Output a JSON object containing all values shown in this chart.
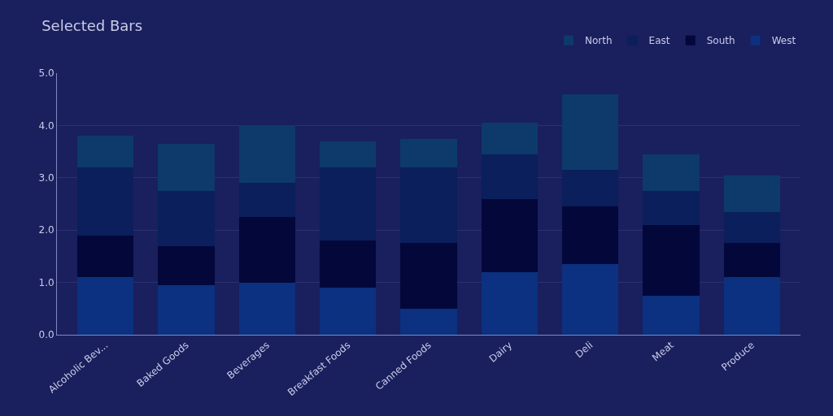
{
  "chart_data": {
    "type": "bar",
    "title": "Selected Bars",
    "stacked": true,
    "categories": [
      "Alcoholic Bev...",
      "Baked Goods",
      "Beverages",
      "Breakfast Foods",
      "Canned Foods",
      "Dairy",
      "Deli",
      "Meat",
      "Produce"
    ],
    "series": [
      {
        "name": "West",
        "color": "#0b3180",
        "values": [
          1.1,
          0.95,
          1.0,
          0.9,
          0.5,
          1.2,
          1.35,
          0.75,
          1.1
        ]
      },
      {
        "name": "South",
        "color": "#03073a",
        "values": [
          0.8,
          0.75,
          1.25,
          0.9,
          1.25,
          1.4,
          1.1,
          1.35,
          0.65
        ]
      },
      {
        "name": "East",
        "color": "#0a1f5c",
        "values": [
          1.3,
          1.05,
          0.65,
          1.4,
          1.45,
          0.85,
          0.7,
          0.65,
          0.6
        ]
      },
      {
        "name": "North",
        "color": "#0d3a6a",
        "values": [
          0.6,
          0.9,
          1.1,
          0.5,
          0.55,
          0.6,
          1.45,
          0.7,
          0.7
        ]
      }
    ],
    "ylim": [
      0,
      5
    ],
    "yticks": [
      {
        "value": 0,
        "label": "0.0"
      },
      {
        "value": 1,
        "label": "1.0"
      },
      {
        "value": 2,
        "label": "2.0"
      },
      {
        "value": 3,
        "label": "3.0"
      },
      {
        "value": 4,
        "label": "4.0"
      },
      {
        "value": 5,
        "label": "5.0"
      }
    ],
    "grid": "y",
    "legend": "top right"
  }
}
